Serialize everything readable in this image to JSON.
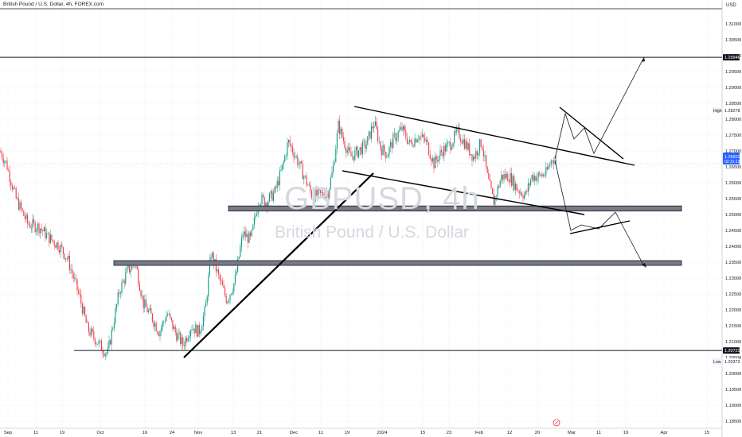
{
  "header": {
    "title": "British Pound / U.S. Dollar, 4h, FOREX.com",
    "currency": "USD"
  },
  "watermark": {
    "symbol": "GBPUSD, 4h",
    "name": "British Pound / U.S. Dollar"
  },
  "chart_data": {
    "type": "candlestick",
    "symbol": "GBPUSD",
    "timeframe": "4h",
    "ylim": [
      1.18,
      1.316
    ],
    "y_ticks": [
      "1.31000",
      "1.30500",
      "1.30000",
      "1.29500",
      "1.29000",
      "1.28500",
      "1.28000",
      "1.27500",
      "1.27000",
      "1.26500",
      "1.26000",
      "1.25500",
      "1.25000",
      "1.24500",
      "1.24000",
      "1.23500",
      "1.23000",
      "1.22500",
      "1.22000",
      "1.21500",
      "1.21000",
      "1.20500",
      "1.20000",
      "1.19500",
      "1.19000",
      "1.18500"
    ],
    "x_ticks": [
      "Sep",
      "11",
      "19",
      "Oct",
      "16",
      "24",
      "Nov",
      "13",
      "21",
      "Dec",
      "11",
      "19",
      "2024",
      "15",
      "23",
      "Feb",
      "12",
      "20",
      "Mar",
      "11",
      "19",
      "Apr",
      "15"
    ],
    "labels": {
      "last_price": "1.26601",
      "countdown": "02:31:13",
      "high_label": "High",
      "high_value": "1.28278",
      "low_label": "Low",
      "low_value": "1.20373",
      "level_top": "1.29946",
      "level_bottom": "1.20723"
    },
    "price_path": [
      [
        0,
        1.27
      ],
      [
        8,
        1.266
      ],
      [
        20,
        1.255
      ],
      [
        35,
        1.247
      ],
      [
        50,
        1.246
      ],
      [
        60,
        1.243
      ],
      [
        75,
        1.24
      ],
      [
        85,
        1.236
      ],
      [
        100,
        1.224
      ],
      [
        110,
        1.214
      ],
      [
        125,
        1.209
      ],
      [
        135,
        1.206
      ],
      [
        150,
        1.226
      ],
      [
        160,
        1.232
      ],
      [
        170,
        1.235
      ],
      [
        180,
        1.222
      ],
      [
        190,
        1.218
      ],
      [
        200,
        1.213
      ],
      [
        210,
        1.219
      ],
      [
        220,
        1.213
      ],
      [
        230,
        1.209
      ],
      [
        240,
        1.215
      ],
      [
        250,
        1.213
      ],
      [
        258,
        1.22
      ],
      [
        265,
        1.238
      ],
      [
        275,
        1.23
      ],
      [
        285,
        1.223
      ],
      [
        295,
        1.229
      ],
      [
        305,
        1.244
      ],
      [
        315,
        1.242
      ],
      [
        325,
        1.255
      ],
      [
        335,
        1.254
      ],
      [
        345,
        1.257
      ],
      [
        355,
        1.265
      ],
      [
        362,
        1.273
      ],
      [
        372,
        1.268
      ],
      [
        382,
        1.262
      ],
      [
        392,
        1.256
      ],
      [
        402,
        1.256
      ],
      [
        412,
        1.257
      ],
      [
        418,
        1.264
      ],
      [
        425,
        1.278
      ],
      [
        432,
        1.273
      ],
      [
        440,
        1.268
      ],
      [
        450,
        1.27
      ],
      [
        460,
        1.272
      ],
      [
        470,
        1.279
      ],
      [
        478,
        1.271
      ],
      [
        486,
        1.269
      ],
      [
        495,
        1.274
      ],
      [
        505,
        1.277
      ],
      [
        515,
        1.272
      ],
      [
        525,
        1.275
      ],
      [
        535,
        1.273
      ],
      [
        545,
        1.266
      ],
      [
        555,
        1.27
      ],
      [
        565,
        1.272
      ],
      [
        575,
        1.276
      ],
      [
        585,
        1.272
      ],
      [
        595,
        1.268
      ],
      [
        605,
        1.273
      ],
      [
        612,
        1.262
      ],
      [
        620,
        1.254
      ],
      [
        630,
        1.262
      ],
      [
        640,
        1.262
      ],
      [
        650,
        1.258
      ],
      [
        660,
        1.256
      ],
      [
        668,
        1.262
      ],
      [
        676,
        1.262
      ],
      [
        686,
        1.263
      ],
      [
        694,
        1.268
      ],
      [
        700,
        1.266
      ]
    ],
    "trendlines": [
      {
        "name": "rising-trendline",
        "from": [
          "Oct 24",
          1.2045
        ],
        "to": [
          "Dec 18",
          1.259
        ]
      },
      {
        "name": "channel-upper",
        "from": [
          "Dec 12",
          1.2844
        ],
        "to": [
          "Mar 24",
          1.265
        ]
      },
      {
        "name": "channel-lower",
        "from": [
          "Dec 12",
          1.2633
        ],
        "to": [
          "Mar 5",
          1.249
        ]
      }
    ],
    "zones": [
      {
        "name": "resistance-zone",
        "price_range": [
          1.2511,
          1.2527
        ]
      },
      {
        "name": "support-zone",
        "price_range": [
          1.234,
          1.2355
        ]
      }
    ],
    "levels": [
      1.29946,
      1.20723
    ],
    "projections": [
      {
        "name": "bullish-projection",
        "points": [
          [
            "Feb 28",
            1.2705
          ],
          [
            "Mar 1",
            1.2828
          ],
          [
            "Mar 5",
            1.2746
          ],
          [
            "Mar 8",
            1.2782
          ],
          [
            "Mar 11",
            1.2721
          ],
          [
            "Mar 25",
            1.2995
          ]
        ]
      },
      {
        "name": "bullish-triangle-upper",
        "points": [
          [
            "Mar 1",
            1.2854
          ],
          [
            "Mar 22",
            1.2672
          ]
        ]
      },
      {
        "name": "bearish-projection",
        "points": [
          [
            "Feb 28",
            1.27
          ],
          [
            "Mar 5",
            1.2456
          ],
          [
            "Mar 9",
            1.2474
          ],
          [
            "Mar 13",
            1.2462
          ],
          [
            "Mar 17",
            1.2506
          ],
          [
            "Mar 25",
            1.2336
          ]
        ]
      },
      {
        "name": "bearish-triangle-lower",
        "points": [
          [
            "Mar 5",
            1.2446
          ],
          [
            "Mar 20",
            1.2486
          ]
        ]
      }
    ]
  }
}
